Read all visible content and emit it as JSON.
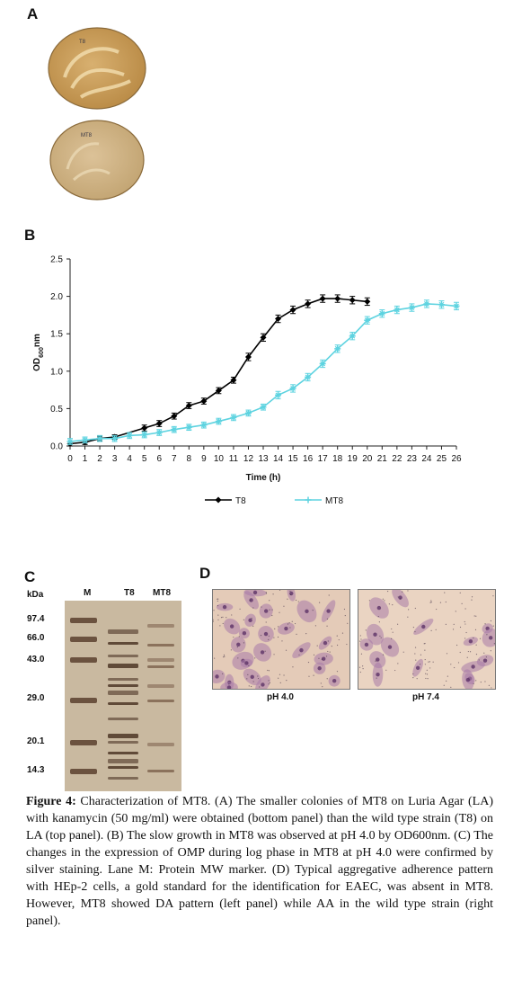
{
  "panels": {
    "a": "A",
    "b": "B",
    "c": "C",
    "d": "D"
  },
  "plates": {
    "top_label": "T8",
    "bottom_label": "MT8",
    "top_color": "#c89a52",
    "bottom_color": "#cfb182"
  },
  "chart_data": {
    "type": "line",
    "xlabel": "Time (h)",
    "ylabel": "OD600nm",
    "xlim": [
      0,
      26
    ],
    "ylim": [
      0,
      2.5
    ],
    "yticks": [
      "0.0",
      "0.5",
      "1.0",
      "1.5",
      "2.0",
      "2.5"
    ],
    "xticks": [
      "0",
      "1",
      "2",
      "3",
      "4",
      "5",
      "6",
      "7",
      "8",
      "9",
      "10",
      "11",
      "12",
      "13",
      "14",
      "15",
      "16",
      "17",
      "18",
      "19",
      "20",
      "21",
      "22",
      "23",
      "24",
      "25",
      "26"
    ],
    "grid": false,
    "legend_position": "bottom",
    "series": [
      {
        "name": "T8",
        "color": "#000000",
        "marker": "diamond",
        "x": [
          0,
          1,
          2,
          3,
          5,
          6,
          7,
          8,
          9,
          10,
          11,
          12,
          13,
          14,
          15,
          16,
          17,
          18,
          19,
          20
        ],
        "y": [
          0.03,
          0.05,
          0.1,
          0.12,
          0.24,
          0.3,
          0.4,
          0.54,
          0.6,
          0.74,
          0.88,
          1.19,
          1.45,
          1.7,
          1.82,
          1.9,
          1.97,
          1.97,
          1.95,
          1.93
        ],
        "err": [
          0.03,
          0.03,
          0.03,
          0.03,
          0.04,
          0.04,
          0.04,
          0.04,
          0.04,
          0.04,
          0.04,
          0.05,
          0.05,
          0.05,
          0.05,
          0.05,
          0.05,
          0.05,
          0.05,
          0.05
        ]
      },
      {
        "name": "MT8",
        "color": "#5ed3e0",
        "marker": "star",
        "x": [
          0,
          1,
          2,
          3,
          4,
          5,
          6,
          7,
          8,
          9,
          10,
          11,
          12,
          13,
          14,
          15,
          16,
          17,
          18,
          19,
          20,
          21,
          22,
          23,
          24,
          25,
          26
        ],
        "y": [
          0.06,
          0.08,
          0.1,
          0.1,
          0.14,
          0.15,
          0.18,
          0.22,
          0.25,
          0.28,
          0.33,
          0.38,
          0.44,
          0.52,
          0.68,
          0.77,
          0.92,
          1.1,
          1.3,
          1.47,
          1.68,
          1.77,
          1.82,
          1.85,
          1.9,
          1.89,
          1.87
        ],
        "err": [
          0.04,
          0.04,
          0.04,
          0.04,
          0.04,
          0.04,
          0.04,
          0.04,
          0.04,
          0.04,
          0.04,
          0.04,
          0.04,
          0.04,
          0.05,
          0.05,
          0.05,
          0.05,
          0.05,
          0.05,
          0.05,
          0.05,
          0.05,
          0.05,
          0.05,
          0.05,
          0.05
        ]
      }
    ]
  },
  "gel": {
    "unit": "kDa",
    "lanes": [
      "M",
      "T8",
      "MT8"
    ],
    "markers": [
      {
        "label": "97.4",
        "kda": 97.4
      },
      {
        "label": "66.0",
        "kda": 66.0
      },
      {
        "label": "43.0",
        "kda": 43.0
      },
      {
        "label": "29.0",
        "kda": 29.0
      },
      {
        "label": "20.1",
        "kda": 20.1
      },
      {
        "label": "14.3",
        "kda": 14.3
      }
    ]
  },
  "micrographs": [
    {
      "label": "pH 4.0"
    },
    {
      "label": "pH 7.4"
    }
  ],
  "caption": {
    "lead": "Figure 4:",
    "text": " Characterization of MT8. (A) The smaller colonies of MT8 on Luria Agar (LA) with kanamycin (50 mg/ml) were obtained (bottom panel) than the wild type strain (T8) on LA (top panel). (B) The slow growth in MT8 was observed at pH 4.0 by OD600nm. (C) The changes in the expression of OMP during log phase in MT8 at pH 4.0 were confirmed by silver staining. Lane M: Protein MW marker. (D) Typical aggregative adherence pattern with HEp-2 cells, a gold standard for the identification for EAEC, was absent in MT8. However, MT8 showed DA pattern (left panel) while AA in the wild type strain (right panel)."
  }
}
